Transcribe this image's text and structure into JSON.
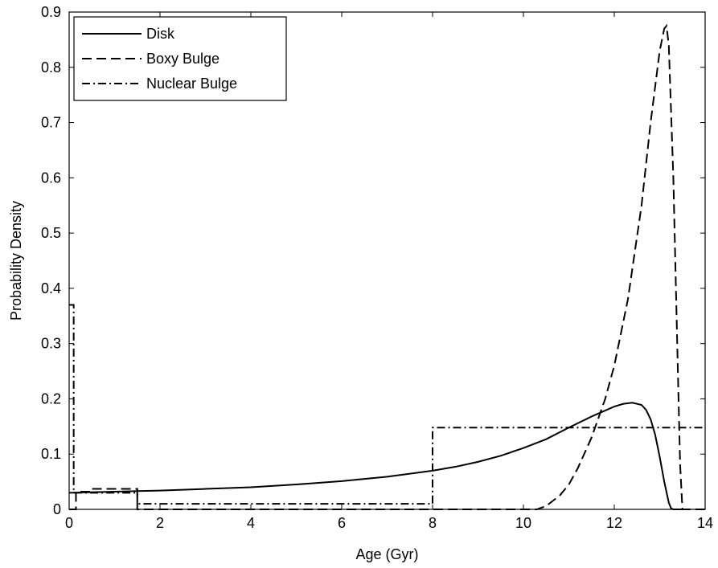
{
  "chart_data": {
    "type": "line",
    "xlabel": "Age (Gyr)",
    "ylabel": "Probability Density",
    "xlim": [
      0,
      14
    ],
    "ylim": [
      0,
      0.9
    ],
    "xticks": [
      0,
      2,
      4,
      6,
      8,
      10,
      12,
      14
    ],
    "xtick_labels": [
      "0",
      "2",
      "4",
      "6",
      "8",
      "10",
      "12",
      "14"
    ],
    "yticks": [
      0,
      0.1,
      0.2,
      0.3,
      0.4,
      0.5,
      0.6,
      0.7,
      0.8,
      0.9
    ],
    "ytick_labels": [
      "0",
      "0.1",
      "0.2",
      "0.3",
      "0.4",
      "0.5",
      "0.6",
      "0.7",
      "0.8",
      "0.9"
    ],
    "grid": false,
    "legend_position": "top-left",
    "series": [
      {
        "name": "Disk",
        "style": "solid",
        "x": [
          0,
          0.5,
          1,
          1.5,
          2,
          3,
          4,
          5,
          6,
          7,
          8,
          8.5,
          9,
          9.5,
          10,
          10.5,
          11,
          11.5,
          12,
          12.2,
          12.4,
          12.6,
          12.7,
          12.8,
          12.9,
          13.0,
          13.1,
          13.2,
          13.25,
          13.3,
          13.6
        ],
        "y": [
          0.03,
          0.031,
          0.032,
          0.033,
          0.034,
          0.037,
          0.04,
          0.045,
          0.051,
          0.059,
          0.07,
          0.077,
          0.086,
          0.097,
          0.111,
          0.127,
          0.148,
          0.168,
          0.186,
          0.191,
          0.193,
          0.189,
          0.18,
          0.163,
          0.135,
          0.095,
          0.05,
          0.012,
          0.002,
          0.0,
          0.0
        ]
      },
      {
        "name": "Boxy Bulge",
        "style": "dashed",
        "x": [
          0,
          0.15,
          0.15,
          0.5,
          0.5,
          1.5,
          1.5,
          4,
          8,
          10.3,
          10.5,
          10.8,
          11.0,
          11.2,
          11.5,
          11.8,
          12.0,
          12.3,
          12.6,
          12.8,
          13.0,
          13.1,
          13.15,
          13.2,
          13.3,
          13.4,
          13.45,
          13.5,
          14.0
        ],
        "y": [
          0,
          0,
          0.032,
          0.032,
          0.037,
          0.037,
          0,
          0,
          0,
          0.0,
          0.006,
          0.025,
          0.045,
          0.075,
          0.13,
          0.2,
          0.26,
          0.38,
          0.55,
          0.7,
          0.83,
          0.87,
          0.875,
          0.84,
          0.6,
          0.25,
          0.08,
          0.0,
          0.0
        ]
      },
      {
        "name": "Nuclear Bulge",
        "style": "dashdot",
        "x": [
          0,
          0.01,
          0.01,
          0.1,
          0.1,
          1.5,
          1.5,
          8,
          8,
          14
        ],
        "y": [
          0.37,
          0.37,
          0.37,
          0.37,
          0.03,
          0.03,
          0.01,
          0.01,
          0.148,
          0.148
        ]
      }
    ]
  }
}
